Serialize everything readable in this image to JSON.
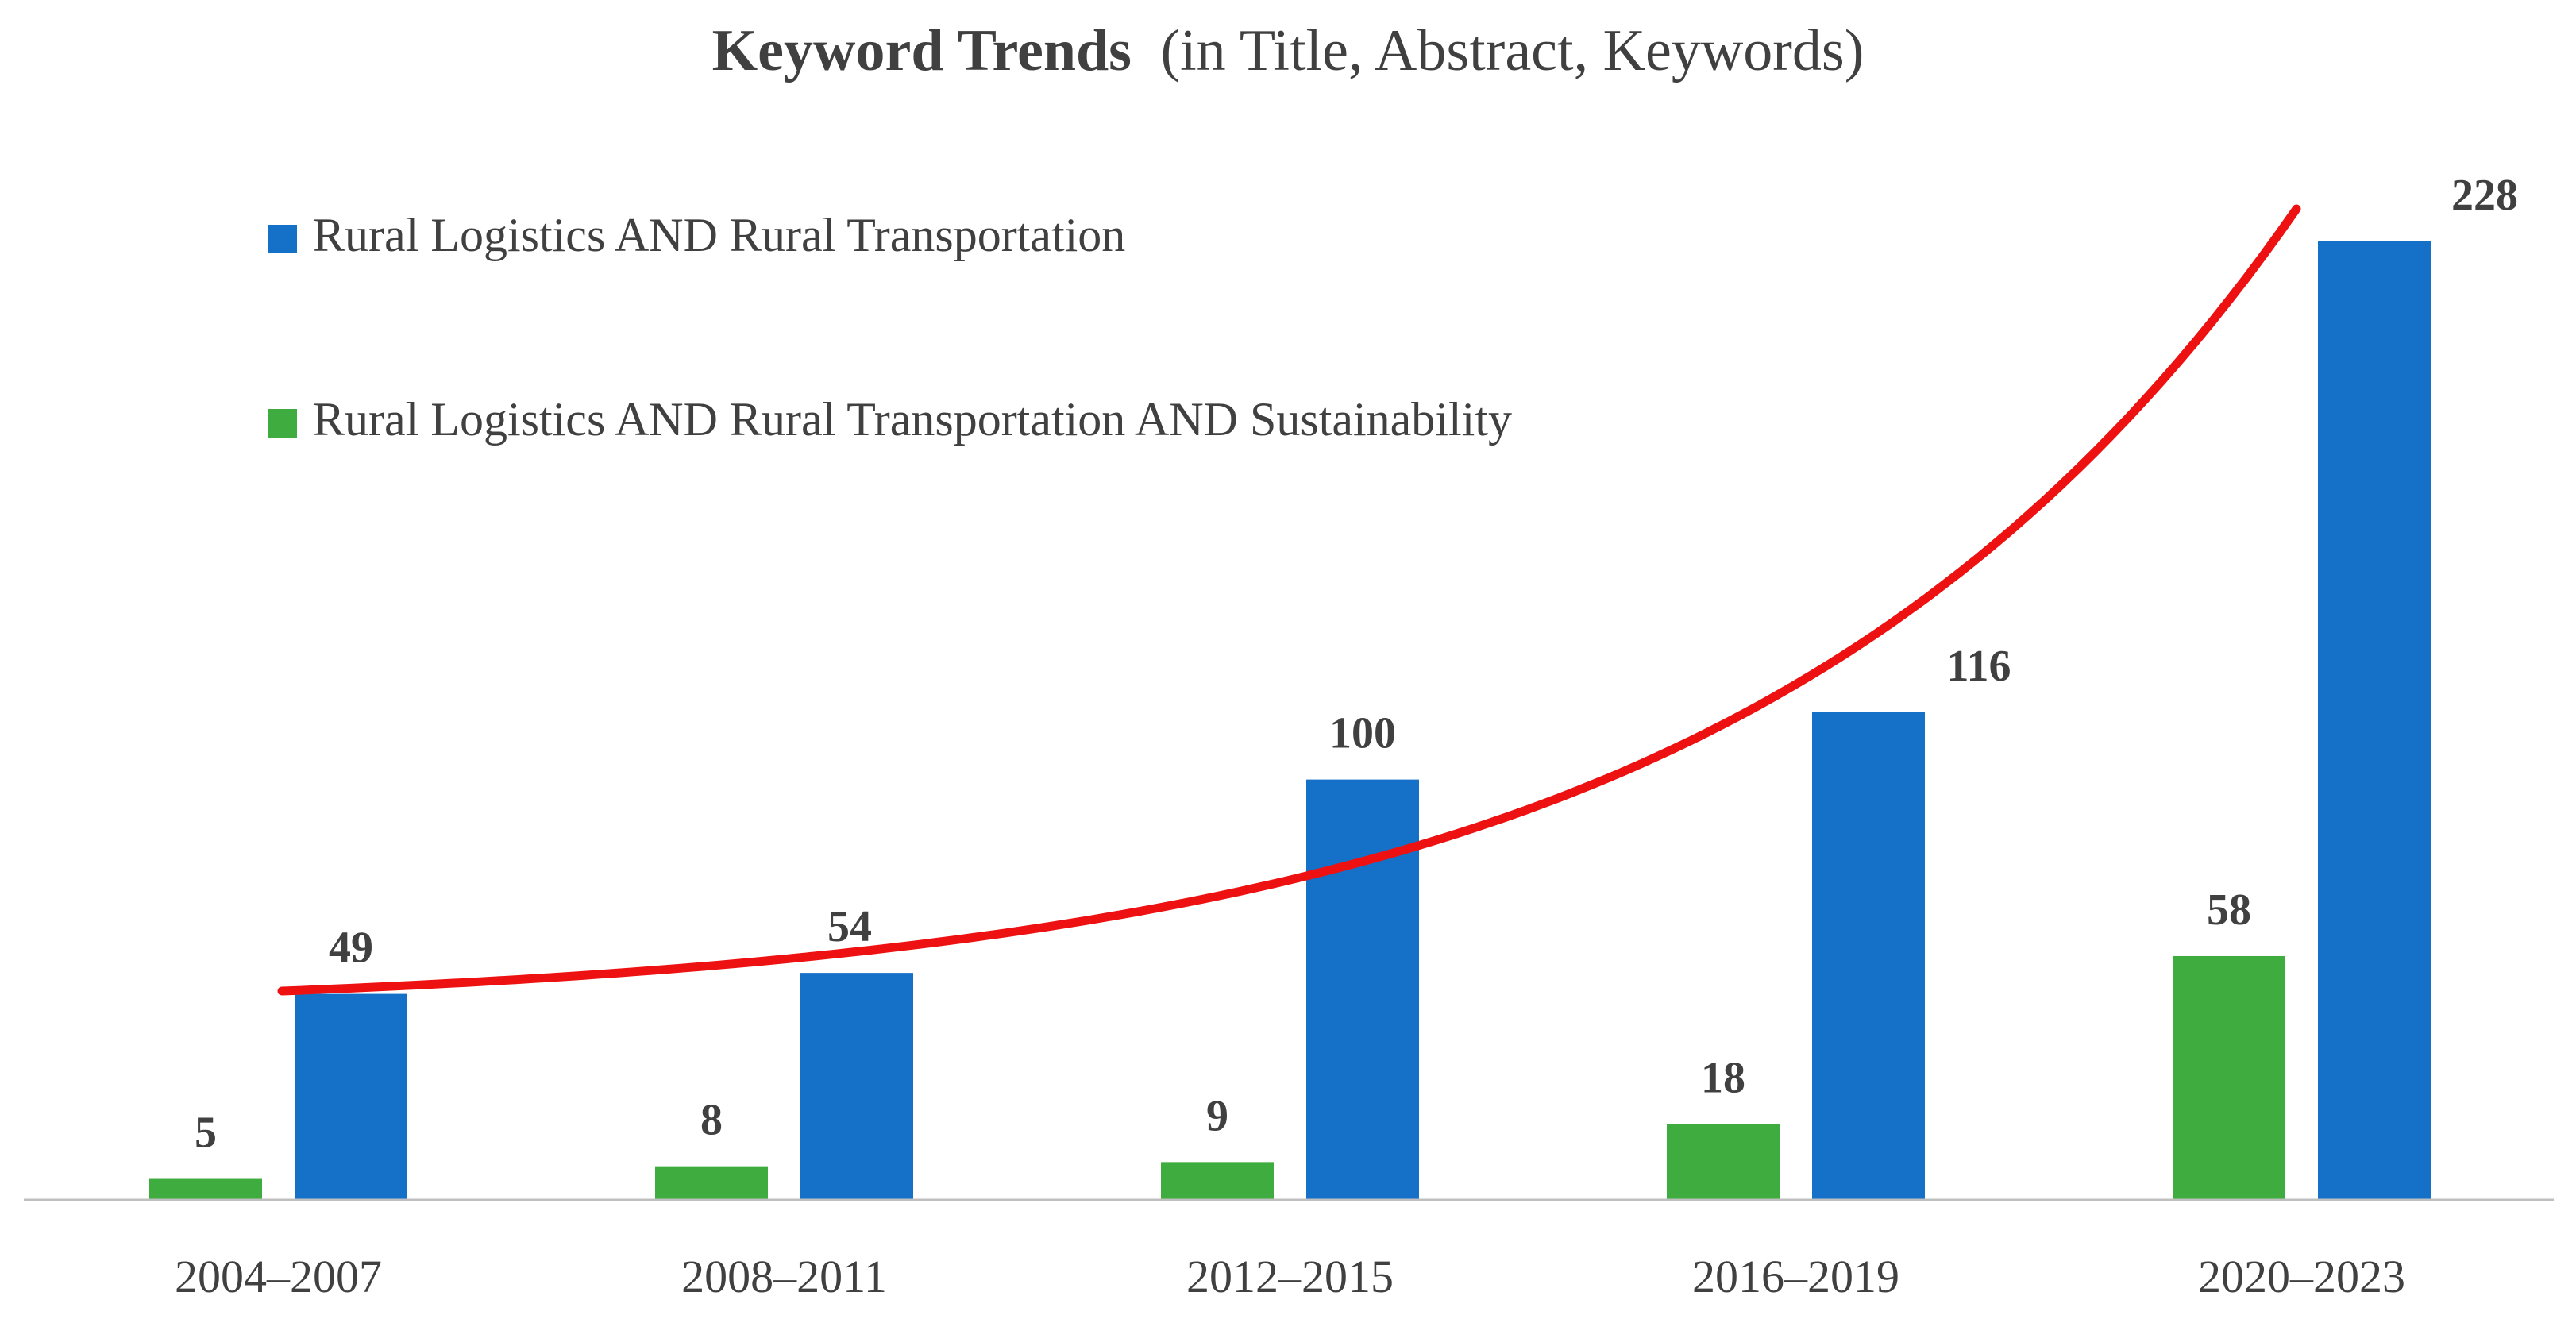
{
  "chart_data": {
    "type": "bar",
    "title": "Keyword Trends",
    "subtitle": "(in Title, Abstract, Keywords)",
    "xlabel": "",
    "ylabel": "",
    "ylim": [
      0,
      228
    ],
    "grid": false,
    "legend_position": "top-left",
    "categories": [
      "2004–2007",
      "2008–2011",
      "2012–2015",
      "2016–2019",
      "2020–2023"
    ],
    "series": [
      {
        "name": "Rural Logistics AND Rural Transportation AND Sustainability",
        "color": "#3EAC3E",
        "values": [
          5,
          8,
          9,
          18,
          58
        ]
      },
      {
        "name": "Rural Logistics AND Rural Transportation",
        "color": "#1570C8",
        "values": [
          49,
          54,
          100,
          116,
          228
        ]
      }
    ],
    "legend_order": [
      1,
      0
    ],
    "trend_line": {
      "color": "#EE1111",
      "description": "exponential trend"
    }
  }
}
